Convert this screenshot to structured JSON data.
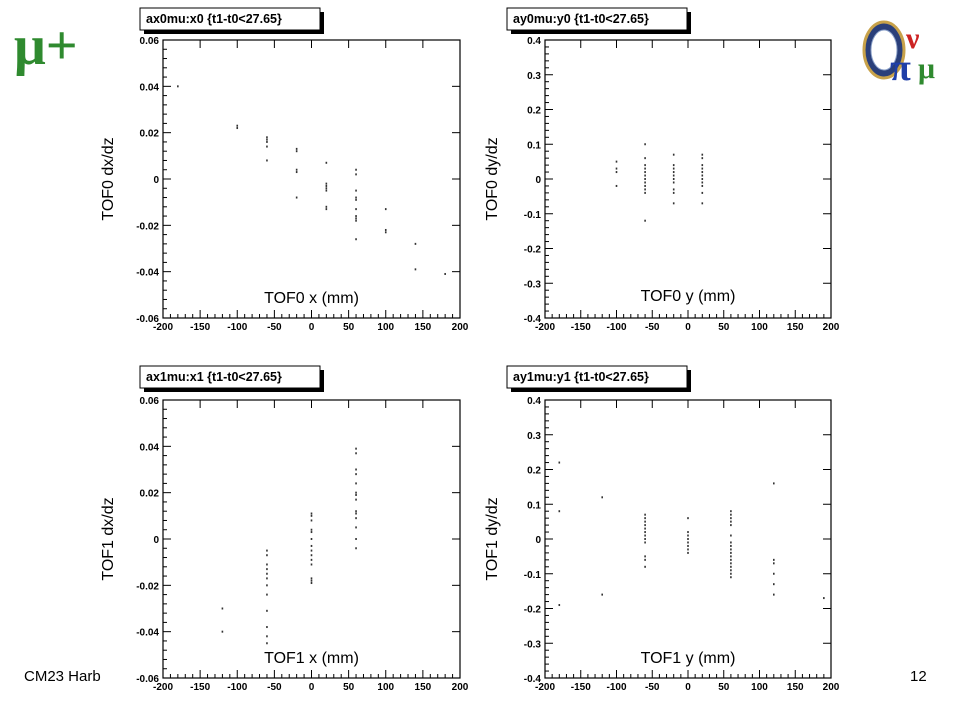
{
  "slide": {
    "title": "μ+",
    "footer_left": "CM23 Harb",
    "page_number": "12"
  },
  "colors": {
    "title": "#2f8a2f",
    "points": "#333333"
  },
  "logo": {
    "name": "mice-logo",
    "text": "πνμ"
  },
  "chart_data": [
    {
      "type": "scatter",
      "title": "ax0mu:x0 {t1-t0<27.65}",
      "xlabel": "TOF0 x (mm)",
      "ylabel": "TOF0 dx/dz",
      "xlim": [
        -200,
        200
      ],
      "ylim": [
        -0.06,
        0.06
      ],
      "xticks": [
        "-200",
        "-150",
        "-100",
        "-50",
        "0",
        "50",
        "100",
        "150",
        "200"
      ],
      "yticks": [
        "-0.06",
        "-0.04",
        "-0.02",
        "0",
        "0.02",
        "0.04",
        "0.06"
      ],
      "points": [
        [
          -180,
          0.04
        ],
        [
          -100,
          0.023
        ],
        [
          -100,
          0.022
        ],
        [
          -60,
          0.018
        ],
        [
          -60,
          0.017
        ],
        [
          -60,
          0.016
        ],
        [
          -60,
          0.014
        ],
        [
          -60,
          0.008
        ],
        [
          -20,
          0.013
        ],
        [
          -20,
          0.012
        ],
        [
          -20,
          0.004
        ],
        [
          -20,
          0.003
        ],
        [
          -20,
          -0.008
        ],
        [
          20,
          0.007
        ],
        [
          20,
          -0.002
        ],
        [
          20,
          -0.003
        ],
        [
          20,
          -0.004
        ],
        [
          20,
          -0.005
        ],
        [
          20,
          -0.012
        ],
        [
          20,
          -0.013
        ],
        [
          60,
          0.004
        ],
        [
          60,
          0.002
        ],
        [
          60,
          -0.005
        ],
        [
          60,
          -0.008
        ],
        [
          60,
          -0.009
        ],
        [
          60,
          -0.013
        ],
        [
          60,
          -0.016
        ],
        [
          60,
          -0.017
        ],
        [
          60,
          -0.018
        ],
        [
          60,
          -0.026
        ],
        [
          100,
          -0.013
        ],
        [
          100,
          -0.022
        ],
        [
          100,
          -0.023
        ],
        [
          140,
          -0.028
        ],
        [
          140,
          -0.039
        ],
        [
          180,
          -0.041
        ]
      ]
    },
    {
      "type": "scatter",
      "title": "ay0mu:y0 {t1-t0<27.65}",
      "xlabel": "TOF0 y (mm)",
      "ylabel": "TOF0 dy/dz",
      "xlim": [
        -200,
        200
      ],
      "ylim": [
        -0.4,
        0.4
      ],
      "xticks": [
        "-200",
        "-150",
        "-100",
        "-50",
        "0",
        "50",
        "100",
        "150",
        "200"
      ],
      "yticks": [
        "-0.4",
        "-0.3",
        "-0.2",
        "-0.1",
        "0",
        "0.1",
        "0.2",
        "0.3",
        "0.4"
      ],
      "points": [
        [
          -100,
          0.05
        ],
        [
          -100,
          0.03
        ],
        [
          -100,
          0.02
        ],
        [
          -100,
          -0.02
        ],
        [
          -60,
          0.1
        ],
        [
          -60,
          0.06
        ],
        [
          -60,
          0.04
        ],
        [
          -60,
          0.03
        ],
        [
          -60,
          0.02
        ],
        [
          -60,
          0.01
        ],
        [
          -60,
          0.0
        ],
        [
          -60,
          -0.01
        ],
        [
          -60,
          -0.02
        ],
        [
          -60,
          -0.03
        ],
        [
          -60,
          -0.04
        ],
        [
          -60,
          -0.12
        ],
        [
          -20,
          0.07
        ],
        [
          -20,
          0.04
        ],
        [
          -20,
          0.03
        ],
        [
          -20,
          0.02
        ],
        [
          -20,
          0.01
        ],
        [
          -20,
          0.0
        ],
        [
          -20,
          -0.01
        ],
        [
          -20,
          -0.03
        ],
        [
          -20,
          -0.04
        ],
        [
          -20,
          -0.07
        ],
        [
          20,
          0.07
        ],
        [
          20,
          0.06
        ],
        [
          20,
          0.04
        ],
        [
          20,
          0.03
        ],
        [
          20,
          0.02
        ],
        [
          20,
          0.01
        ],
        [
          20,
          0.0
        ],
        [
          20,
          -0.01
        ],
        [
          20,
          -0.02
        ],
        [
          20,
          -0.04
        ],
        [
          20,
          -0.07
        ]
      ]
    },
    {
      "type": "scatter",
      "title": "ax1mu:x1 {t1-t0<27.65}",
      "xlabel": "TOF1 x (mm)",
      "ylabel": "TOF1 dx/dz",
      "xlim": [
        -200,
        200
      ],
      "ylim": [
        -0.06,
        0.06
      ],
      "xticks": [
        "-200",
        "-150",
        "-100",
        "-50",
        "0",
        "50",
        "100",
        "150",
        "200"
      ],
      "yticks": [
        "-0.06",
        "-0.04",
        "-0.02",
        "0",
        "0.02",
        "0.04",
        "0.06"
      ],
      "points": [
        [
          -120,
          -0.03
        ],
        [
          -120,
          -0.04
        ],
        [
          -60,
          -0.005
        ],
        [
          -60,
          -0.007
        ],
        [
          -60,
          -0.011
        ],
        [
          -60,
          -0.013
        ],
        [
          -60,
          -0.015
        ],
        [
          -60,
          -0.017
        ],
        [
          -60,
          -0.02
        ],
        [
          -60,
          -0.024
        ],
        [
          -60,
          -0.031
        ],
        [
          -60,
          -0.038
        ],
        [
          -60,
          -0.042
        ],
        [
          -60,
          -0.045
        ],
        [
          0,
          0.011
        ],
        [
          0,
          0.01
        ],
        [
          0,
          0.008
        ],
        [
          0,
          0.004
        ],
        [
          0,
          0.003
        ],
        [
          0,
          0.0
        ],
        [
          0,
          -0.003
        ],
        [
          0,
          -0.005
        ],
        [
          0,
          -0.007
        ],
        [
          0,
          -0.009
        ],
        [
          0,
          -0.011
        ],
        [
          0,
          -0.017
        ],
        [
          0,
          -0.018
        ],
        [
          0,
          -0.019
        ],
        [
          60,
          0.039
        ],
        [
          60,
          0.037
        ],
        [
          60,
          0.03
        ],
        [
          60,
          0.028
        ],
        [
          60,
          0.024
        ],
        [
          60,
          0.02
        ],
        [
          60,
          0.019
        ],
        [
          60,
          0.017
        ],
        [
          60,
          0.012
        ],
        [
          60,
          0.011
        ],
        [
          60,
          0.009
        ],
        [
          60,
          0.005
        ],
        [
          60,
          0.0
        ],
        [
          60,
          -0.004
        ]
      ]
    },
    {
      "type": "scatter",
      "title": "ay1mu:y1 {t1-t0<27.65}",
      "xlabel": "TOF1 y (mm)",
      "ylabel": "TOF1 dy/dz",
      "xlim": [
        -200,
        200
      ],
      "ylim": [
        -0.4,
        0.4
      ],
      "xticks": [
        "-200",
        "-150",
        "-100",
        "-50",
        "0",
        "50",
        "100",
        "150",
        "200"
      ],
      "yticks": [
        "-0.4",
        "-0.3",
        "-0.2",
        "-0.1",
        "0",
        "0.1",
        "0.2",
        "0.3",
        "0.4"
      ],
      "points": [
        [
          -180,
          0.22
        ],
        [
          -180,
          0.08
        ],
        [
          -180,
          -0.19
        ],
        [
          -120,
          0.12
        ],
        [
          -120,
          -0.16
        ],
        [
          -60,
          0.07
        ],
        [
          -60,
          0.06
        ],
        [
          -60,
          0.05
        ],
        [
          -60,
          0.04
        ],
        [
          -60,
          0.03
        ],
        [
          -60,
          0.02
        ],
        [
          -60,
          0.01
        ],
        [
          -60,
          0.0
        ],
        [
          -60,
          -0.01
        ],
        [
          -60,
          -0.05
        ],
        [
          -60,
          -0.06
        ],
        [
          -60,
          -0.08
        ],
        [
          0,
          0.06
        ],
        [
          0,
          0.02
        ],
        [
          0,
          0.01
        ],
        [
          0,
          0.0
        ],
        [
          0,
          -0.01
        ],
        [
          0,
          -0.02
        ],
        [
          0,
          -0.03
        ],
        [
          0,
          -0.04
        ],
        [
          60,
          0.08
        ],
        [
          60,
          0.07
        ],
        [
          60,
          0.06
        ],
        [
          60,
          0.05
        ],
        [
          60,
          0.04
        ],
        [
          60,
          0.01
        ],
        [
          60,
          -0.01
        ],
        [
          60,
          -0.02
        ],
        [
          60,
          -0.03
        ],
        [
          60,
          -0.04
        ],
        [
          60,
          -0.05
        ],
        [
          60,
          -0.06
        ],
        [
          60,
          -0.07
        ],
        [
          60,
          -0.08
        ],
        [
          60,
          -0.09
        ],
        [
          60,
          -0.1
        ],
        [
          60,
          -0.11
        ],
        [
          120,
          0.16
        ],
        [
          120,
          -0.06
        ],
        [
          120,
          -0.07
        ],
        [
          120,
          -0.1
        ],
        [
          120,
          -0.13
        ],
        [
          120,
          -0.16
        ],
        [
          190,
          -0.17
        ]
      ]
    }
  ]
}
